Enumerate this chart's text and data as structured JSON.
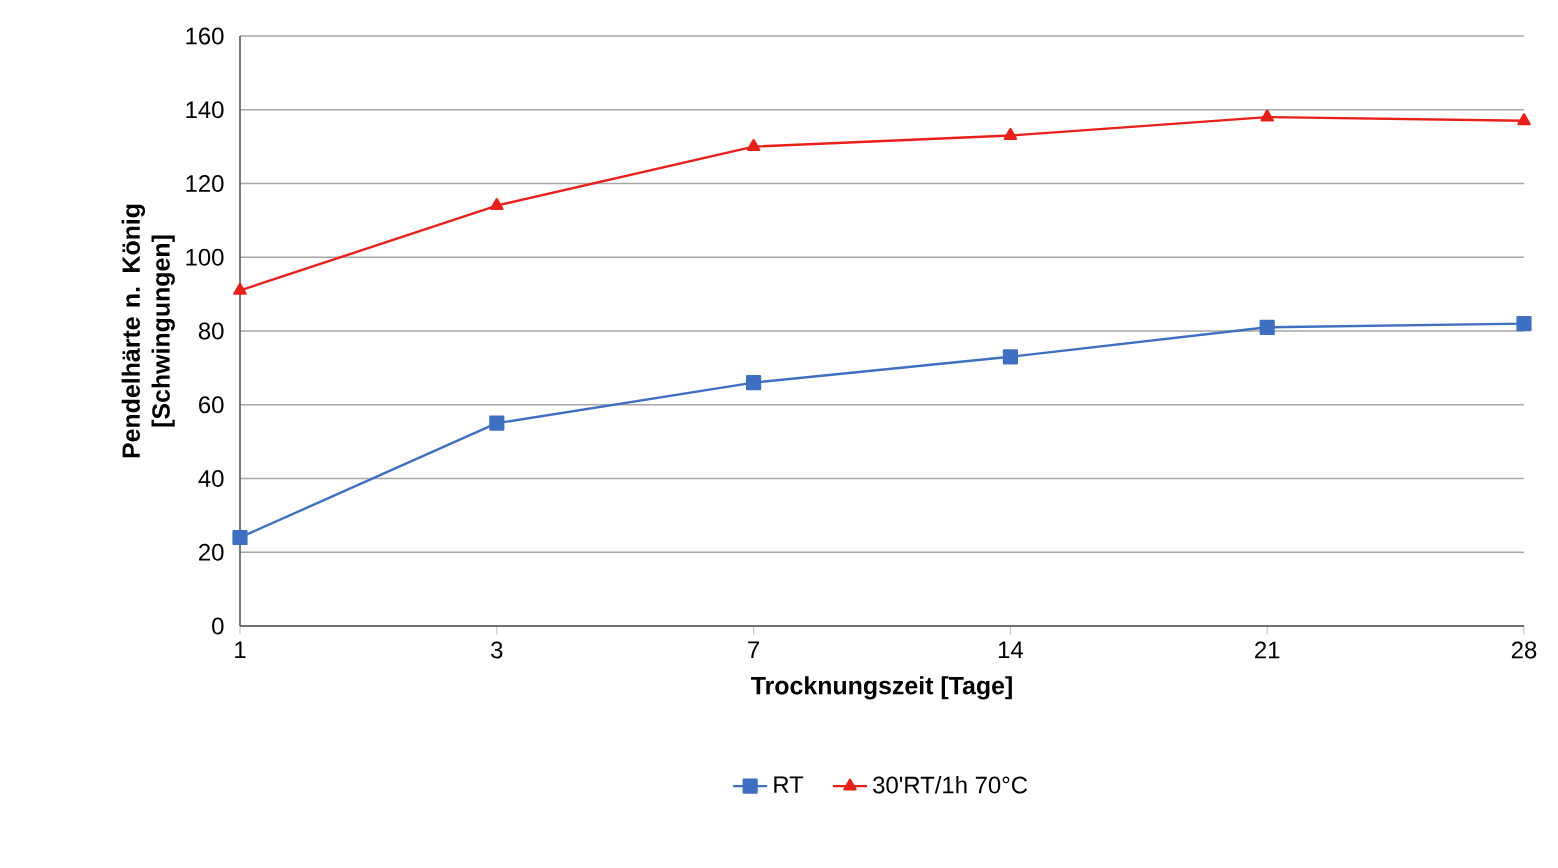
{
  "chart_data": {
    "type": "line",
    "xlabel": "Trocknungszeit [Tage]",
    "ylabel": "Pendelhärte n. König [Schwingungen]",
    "categories": [
      "1",
      "3",
      "7",
      "14",
      "21",
      "28"
    ],
    "series": [
      {
        "name": "RT",
        "color": "#3f6fc0",
        "marker": "square",
        "values": [
          24,
          55,
          66,
          73,
          81,
          82
        ]
      },
      {
        "name": "30'RT/1h 70°C",
        "color": "#e8201a",
        "marker": "triangle",
        "values": [
          91,
          114,
          130,
          133,
          138,
          137
        ]
      }
    ],
    "ylim": [
      0,
      160
    ],
    "yticks": [
      0,
      20,
      40,
      60,
      80,
      100,
      120,
      140,
      160
    ],
    "grid": "y",
    "legend": "bottom",
    "line_style": "solid"
  }
}
